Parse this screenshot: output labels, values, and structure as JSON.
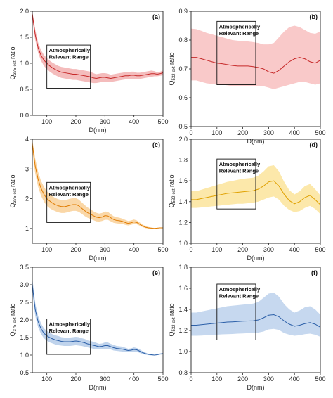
{
  "chart_data": [
    {
      "type": "line",
      "panel_label": "(a)",
      "xlabel": "D(nm)",
      "ylabel_main": "Q",
      "ylabel_sub": "375-ext",
      "ylabel_rest": " ratio",
      "xlim": [
        50,
        500
      ],
      "ylim": [
        0.0,
        2.0
      ],
      "xticks": [
        100,
        200,
        300,
        400,
        500
      ],
      "yticks": [
        0.0,
        0.5,
        1.0,
        1.5,
        2.0
      ],
      "ytick_labels": [
        "0.0",
        "0.5",
        "1.0",
        "1.5",
        "2.0"
      ],
      "line_color": "#c62828",
      "band_color": "#f0a6a6",
      "annotation": {
        "lines": [
          "Atmospherically",
          "Relevant Range"
        ],
        "x_range": [
          100,
          250
        ],
        "y_range": [
          0.52,
          1.35
        ]
      },
      "x": [
        50,
        60,
        70,
        80,
        90,
        100,
        110,
        120,
        130,
        140,
        150,
        160,
        170,
        180,
        190,
        200,
        210,
        220,
        230,
        240,
        250,
        260,
        270,
        280,
        290,
        300,
        310,
        320,
        330,
        340,
        350,
        360,
        370,
        380,
        390,
        400,
        410,
        420,
        430,
        440,
        450,
        460,
        470,
        480,
        490,
        500
      ],
      "y": [
        1.95,
        1.55,
        1.3,
        1.15,
        1.06,
        1.0,
        0.95,
        0.91,
        0.88,
        0.85,
        0.83,
        0.82,
        0.81,
        0.8,
        0.79,
        0.79,
        0.78,
        0.77,
        0.76,
        0.75,
        0.74,
        0.72,
        0.71,
        0.72,
        0.73,
        0.73,
        0.72,
        0.71,
        0.72,
        0.73,
        0.74,
        0.75,
        0.76,
        0.76,
        0.77,
        0.77,
        0.76,
        0.76,
        0.77,
        0.78,
        0.79,
        0.8,
        0.8,
        0.79,
        0.8,
        0.82
      ],
      "y_low": [
        1.85,
        1.45,
        1.2,
        1.05,
        0.95,
        0.89,
        0.84,
        0.8,
        0.77,
        0.74,
        0.72,
        0.71,
        0.7,
        0.69,
        0.68,
        0.68,
        0.67,
        0.66,
        0.65,
        0.64,
        0.63,
        0.62,
        0.62,
        0.63,
        0.64,
        0.64,
        0.64,
        0.64,
        0.65,
        0.66,
        0.67,
        0.68,
        0.69,
        0.69,
        0.7,
        0.7,
        0.7,
        0.7,
        0.71,
        0.72,
        0.73,
        0.74,
        0.75,
        0.75,
        0.76,
        0.77
      ],
      "y_high": [
        2.0,
        1.65,
        1.4,
        1.25,
        1.16,
        1.1,
        1.05,
        1.01,
        0.98,
        0.95,
        0.93,
        0.92,
        0.91,
        0.9,
        0.89,
        0.89,
        0.88,
        0.87,
        0.86,
        0.85,
        0.84,
        0.81,
        0.79,
        0.8,
        0.81,
        0.81,
        0.8,
        0.78,
        0.79,
        0.8,
        0.81,
        0.82,
        0.83,
        0.83,
        0.84,
        0.84,
        0.82,
        0.82,
        0.83,
        0.84,
        0.85,
        0.86,
        0.85,
        0.83,
        0.84,
        0.86
      ]
    },
    {
      "type": "line",
      "panel_label": "(b)",
      "xlabel": "D(nm)",
      "ylabel_main": "Q",
      "ylabel_sub": "532-ext",
      "ylabel_rest": " ratio",
      "xlim": [
        0,
        500
      ],
      "ylim": [
        0.5,
        0.9
      ],
      "xticks": [
        0,
        100,
        200,
        300,
        400,
        500
      ],
      "yticks": [
        0.5,
        0.6,
        0.7,
        0.8,
        0.9
      ],
      "ytick_labels": [
        "0.5",
        "0.6",
        "0.7",
        "0.8",
        "0.9"
      ],
      "line_color": "#c62828",
      "band_color": "#f7b7b7",
      "annotation": {
        "lines": [
          "Atmospherically",
          "Relevant Range"
        ],
        "x_range": [
          100,
          250
        ],
        "y_range": [
          0.645,
          0.865
        ]
      },
      "x": [
        0,
        20,
        40,
        60,
        80,
        100,
        120,
        140,
        160,
        180,
        200,
        220,
        240,
        260,
        280,
        300,
        320,
        340,
        360,
        380,
        400,
        420,
        440,
        460,
        480,
        500
      ],
      "y": [
        0.74,
        0.74,
        0.735,
        0.73,
        0.725,
        0.72,
        0.718,
        0.715,
        0.712,
        0.71,
        0.71,
        0.71,
        0.708,
        0.705,
        0.7,
        0.69,
        0.685,
        0.695,
        0.71,
        0.725,
        0.735,
        0.74,
        0.735,
        0.725,
        0.72,
        0.73
      ],
      "y_low": [
        0.66,
        0.66,
        0.655,
        0.65,
        0.648,
        0.645,
        0.645,
        0.643,
        0.64,
        0.64,
        0.64,
        0.64,
        0.64,
        0.64,
        0.64,
        0.635,
        0.63,
        0.635,
        0.64,
        0.645,
        0.65,
        0.655,
        0.655,
        0.65,
        0.645,
        0.65
      ],
      "y_high": [
        0.84,
        0.838,
        0.832,
        0.825,
        0.82,
        0.815,
        0.81,
        0.805,
        0.8,
        0.798,
        0.796,
        0.795,
        0.793,
        0.79,
        0.785,
        0.785,
        0.79,
        0.81,
        0.83,
        0.845,
        0.85,
        0.845,
        0.835,
        0.825,
        0.822,
        0.83
      ]
    },
    {
      "type": "line",
      "panel_label": "(c)",
      "xlabel": "D(nm)",
      "ylabel_main": "Q",
      "ylabel_sub": "375-ext",
      "ylabel_rest": " ratio",
      "xlim": [
        50,
        500
      ],
      "ylim": [
        0.5,
        4.0
      ],
      "xticks": [
        100,
        200,
        300,
        400,
        500
      ],
      "yticks": [
        1,
        2,
        3,
        4
      ],
      "ytick_labels": [
        "1",
        "2",
        "3",
        "4"
      ],
      "line_color": "#e07b00",
      "band_color": "#f8c98a",
      "annotation": {
        "lines": [
          "Atmospherically",
          "Relevant Range"
        ],
        "x_range": [
          100,
          250
        ],
        "y_range": [
          1.2,
          2.55
        ]
      },
      "x": [
        50,
        60,
        70,
        80,
        90,
        100,
        110,
        120,
        130,
        140,
        150,
        160,
        170,
        180,
        190,
        200,
        210,
        220,
        230,
        240,
        250,
        260,
        270,
        280,
        290,
        300,
        310,
        320,
        330,
        340,
        350,
        360,
        370,
        380,
        390,
        400,
        410,
        420,
        430,
        440,
        450,
        460,
        470,
        480,
        490,
        500
      ],
      "y": [
        3.85,
        3.1,
        2.65,
        2.35,
        2.15,
        2.0,
        1.92,
        1.85,
        1.8,
        1.76,
        1.74,
        1.73,
        1.75,
        1.78,
        1.8,
        1.8,
        1.76,
        1.68,
        1.6,
        1.53,
        1.48,
        1.43,
        1.38,
        1.36,
        1.38,
        1.43,
        1.42,
        1.36,
        1.3,
        1.27,
        1.26,
        1.24,
        1.2,
        1.17,
        1.19,
        1.22,
        1.2,
        1.14,
        1.08,
        1.04,
        1.02,
        1.01,
        1.0,
        1.01,
        1.02,
        1.02
      ],
      "y_low": [
        3.6,
        2.85,
        2.4,
        2.1,
        1.9,
        1.76,
        1.68,
        1.62,
        1.58,
        1.54,
        1.52,
        1.52,
        1.54,
        1.57,
        1.59,
        1.59,
        1.56,
        1.49,
        1.42,
        1.36,
        1.32,
        1.28,
        1.24,
        1.23,
        1.25,
        1.29,
        1.29,
        1.24,
        1.19,
        1.17,
        1.16,
        1.15,
        1.12,
        1.1,
        1.12,
        1.15,
        1.14,
        1.09,
        1.04,
        1.01,
        1.0,
        0.99,
        0.99,
        1.0,
        1.01,
        1.01
      ],
      "y_high": [
        4.0,
        3.35,
        2.9,
        2.6,
        2.4,
        2.25,
        2.16,
        2.08,
        2.02,
        1.98,
        1.96,
        1.95,
        1.97,
        2.0,
        2.02,
        2.02,
        1.97,
        1.88,
        1.79,
        1.71,
        1.65,
        1.58,
        1.53,
        1.5,
        1.52,
        1.57,
        1.56,
        1.48,
        1.41,
        1.38,
        1.36,
        1.33,
        1.29,
        1.25,
        1.27,
        1.3,
        1.27,
        1.2,
        1.13,
        1.08,
        1.05,
        1.03,
        1.02,
        1.02,
        1.03,
        1.03
      ]
    },
    {
      "type": "line",
      "panel_label": "(d)",
      "xlabel": "D(nm)",
      "ylabel_main": "Q",
      "ylabel_sub": "532-ext",
      "ylabel_rest": " ratio",
      "xlim": [
        0,
        500
      ],
      "ylim": [
        1.0,
        2.0
      ],
      "xticks": [
        0,
        100,
        200,
        300,
        400,
        500
      ],
      "yticks": [
        1.0,
        1.2,
        1.4,
        1.6,
        1.8,
        2.0
      ],
      "ytick_labels": [
        "1.0",
        "1.2",
        "1.4",
        "1.6",
        "1.8",
        "2.0"
      ],
      "line_color": "#e0a100",
      "band_color": "#fbe08e",
      "annotation": {
        "lines": [
          "Atmospherically",
          "Relevant Range"
        ],
        "x_range": [
          100,
          250
        ],
        "y_range": [
          1.33,
          1.81
        ]
      },
      "x": [
        0,
        20,
        40,
        60,
        80,
        100,
        120,
        140,
        160,
        180,
        200,
        220,
        240,
        260,
        280,
        300,
        320,
        340,
        360,
        380,
        400,
        420,
        440,
        460,
        480,
        500
      ],
      "y": [
        1.42,
        1.42,
        1.43,
        1.44,
        1.45,
        1.46,
        1.47,
        1.48,
        1.485,
        1.49,
        1.495,
        1.5,
        1.505,
        1.52,
        1.55,
        1.59,
        1.6,
        1.55,
        1.47,
        1.41,
        1.38,
        1.4,
        1.44,
        1.46,
        1.42,
        1.37
      ],
      "y_low": [
        1.34,
        1.34,
        1.345,
        1.35,
        1.355,
        1.36,
        1.365,
        1.37,
        1.375,
        1.38,
        1.38,
        1.385,
        1.39,
        1.4,
        1.42,
        1.44,
        1.45,
        1.42,
        1.36,
        1.32,
        1.3,
        1.31,
        1.34,
        1.36,
        1.33,
        1.28
      ],
      "y_high": [
        1.5,
        1.5,
        1.515,
        1.53,
        1.545,
        1.56,
        1.575,
        1.59,
        1.6,
        1.61,
        1.62,
        1.625,
        1.63,
        1.65,
        1.69,
        1.74,
        1.75,
        1.69,
        1.59,
        1.51,
        1.47,
        1.5,
        1.55,
        1.57,
        1.52,
        1.46
      ]
    },
    {
      "type": "line",
      "panel_label": "(e)",
      "xlabel": "D(nm)",
      "ylabel_main": "Q",
      "ylabel_sub": "375-ext",
      "ylabel_rest": " ratio",
      "xlim": [
        50,
        500
      ],
      "ylim": [
        0.5,
        3.5
      ],
      "xticks": [
        100,
        200,
        300,
        400,
        500
      ],
      "yticks": [
        0.5,
        1.0,
        1.5,
        2.0,
        2.5,
        3.0,
        3.5
      ],
      "ytick_labels": [
        "0.5",
        "1.0",
        "1.5",
        "2.0",
        "2.5",
        "3.0",
        "3.5"
      ],
      "line_color": "#2b5fa8",
      "band_color": "#a9c4e6",
      "annotation": {
        "lines": [
          "Atmospherically",
          "Relevant Range"
        ],
        "x_range": [
          100,
          250
        ],
        "y_range": [
          1.02,
          2.03
        ]
      },
      "x": [
        50,
        60,
        70,
        80,
        90,
        100,
        110,
        120,
        130,
        140,
        150,
        160,
        170,
        180,
        190,
        200,
        210,
        220,
        230,
        240,
        250,
        260,
        270,
        280,
        290,
        300,
        310,
        320,
        330,
        340,
        350,
        360,
        370,
        380,
        390,
        400,
        410,
        420,
        430,
        440,
        450,
        460,
        470,
        480,
        490,
        500
      ],
      "y": [
        3.0,
        2.3,
        1.95,
        1.75,
        1.62,
        1.55,
        1.5,
        1.46,
        1.43,
        1.41,
        1.39,
        1.38,
        1.38,
        1.38,
        1.39,
        1.4,
        1.39,
        1.37,
        1.35,
        1.32,
        1.3,
        1.28,
        1.26,
        1.24,
        1.25,
        1.27,
        1.27,
        1.24,
        1.21,
        1.19,
        1.18,
        1.17,
        1.15,
        1.13,
        1.14,
        1.16,
        1.15,
        1.11,
        1.07,
        1.04,
        1.02,
        1.01,
        1.0,
        1.01,
        1.03,
        1.04
      ],
      "y_low": [
        2.8,
        2.12,
        1.79,
        1.6,
        1.48,
        1.41,
        1.36,
        1.33,
        1.3,
        1.28,
        1.27,
        1.26,
        1.26,
        1.26,
        1.27,
        1.28,
        1.27,
        1.26,
        1.24,
        1.22,
        1.2,
        1.18,
        1.17,
        1.16,
        1.17,
        1.18,
        1.18,
        1.16,
        1.13,
        1.12,
        1.11,
        1.1,
        1.09,
        1.08,
        1.09,
        1.1,
        1.1,
        1.06,
        1.03,
        1.01,
        1.0,
        0.99,
        0.99,
        1.0,
        1.01,
        1.02
      ],
      "y_high": [
        3.2,
        2.48,
        2.11,
        1.9,
        1.76,
        1.69,
        1.64,
        1.59,
        1.56,
        1.54,
        1.51,
        1.5,
        1.5,
        1.5,
        1.51,
        1.52,
        1.51,
        1.48,
        1.46,
        1.42,
        1.4,
        1.38,
        1.35,
        1.32,
        1.33,
        1.36,
        1.36,
        1.32,
        1.29,
        1.26,
        1.25,
        1.24,
        1.21,
        1.18,
        1.19,
        1.22,
        1.2,
        1.16,
        1.11,
        1.07,
        1.04,
        1.03,
        1.01,
        1.02,
        1.05,
        1.06
      ]
    },
    {
      "type": "line",
      "panel_label": "(f)",
      "xlabel": "D(nm)",
      "ylabel_main": "Q",
      "ylabel_sub": "532-ext",
      "ylabel_rest": " ratio",
      "xlim": [
        0,
        500
      ],
      "ylim": [
        0.8,
        1.8
      ],
      "xticks": [
        0,
        100,
        200,
        300,
        400,
        500
      ],
      "yticks": [
        0.8,
        1.0,
        1.2,
        1.4,
        1.6,
        1.8
      ],
      "ytick_labels": [
        "0.8",
        "1.0",
        "1.2",
        "1.4",
        "1.6",
        "1.8"
      ],
      "line_color": "#2b5fa8",
      "band_color": "#b3cbe9",
      "annotation": {
        "lines": [
          "Atmospherically",
          "Relevant Range"
        ],
        "x_range": [
          100,
          250
        ],
        "y_range": [
          1.11,
          1.64
        ]
      },
      "x": [
        0,
        20,
        40,
        60,
        80,
        100,
        120,
        140,
        160,
        180,
        200,
        220,
        240,
        260,
        280,
        300,
        320,
        340,
        360,
        380,
        400,
        420,
        440,
        460,
        480,
        500
      ],
      "y": [
        1.25,
        1.25,
        1.255,
        1.26,
        1.265,
        1.27,
        1.275,
        1.28,
        1.282,
        1.285,
        1.288,
        1.29,
        1.292,
        1.3,
        1.32,
        1.345,
        1.35,
        1.33,
        1.29,
        1.26,
        1.24,
        1.25,
        1.265,
        1.275,
        1.26,
        1.23
      ],
      "y_low": [
        1.15,
        1.15,
        1.152,
        1.155,
        1.158,
        1.16,
        1.163,
        1.165,
        1.167,
        1.17,
        1.172,
        1.174,
        1.175,
        1.18,
        1.19,
        1.21,
        1.215,
        1.205,
        1.175,
        1.16,
        1.15,
        1.155,
        1.165,
        1.17,
        1.16,
        1.14
      ],
      "y_high": [
        1.37,
        1.37,
        1.38,
        1.39,
        1.4,
        1.41,
        1.42,
        1.43,
        1.435,
        1.44,
        1.445,
        1.45,
        1.455,
        1.47,
        1.51,
        1.55,
        1.56,
        1.52,
        1.45,
        1.4,
        1.37,
        1.39,
        1.42,
        1.43,
        1.4,
        1.35
      ]
    }
  ]
}
